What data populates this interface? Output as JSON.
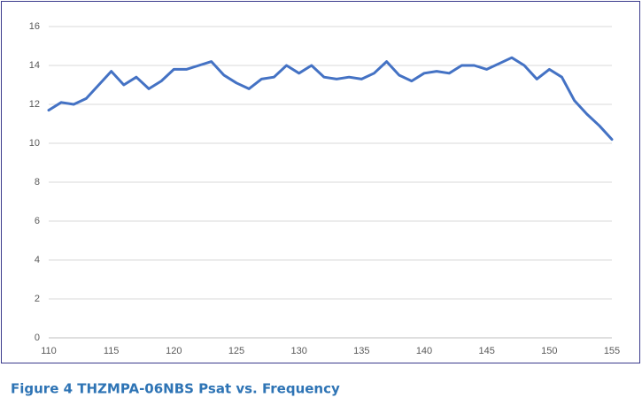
{
  "chart_data": {
    "type": "line",
    "caption": "Figure 4 THZMPA-06NBS Psat vs. Frequency",
    "x": [
      110,
      111,
      112,
      113,
      114,
      115,
      116,
      117,
      118,
      119,
      120,
      121,
      122,
      123,
      124,
      125,
      126,
      127,
      128,
      129,
      130,
      131,
      132,
      133,
      134,
      135,
      136,
      137,
      138,
      139,
      140,
      141,
      142,
      143,
      144,
      145,
      146,
      147,
      148,
      149,
      150,
      151,
      152,
      153,
      154,
      155
    ],
    "series": [
      {
        "name": "Psat",
        "color": "#4472c4",
        "values": [
          11.7,
          12.1,
          12.0,
          12.3,
          13.0,
          13.7,
          13.0,
          13.4,
          12.8,
          13.2,
          13.8,
          13.8,
          14.0,
          14.2,
          13.5,
          13.1,
          12.8,
          13.3,
          13.4,
          14.0,
          13.6,
          14.0,
          13.4,
          13.3,
          13.4,
          13.3,
          13.6,
          14.2,
          13.5,
          13.2,
          13.6,
          13.7,
          13.6,
          14.0,
          14.0,
          13.8,
          14.1,
          14.4,
          14.0,
          13.3,
          13.8,
          13.4,
          12.2,
          11.5,
          10.9,
          10.2
        ]
      }
    ],
    "xlim": [
      110,
      155
    ],
    "xticks": [
      110,
      115,
      120,
      125,
      130,
      135,
      140,
      145,
      150,
      155
    ],
    "ylim": [
      0,
      16
    ],
    "yticks": [
      0,
      2,
      4,
      6,
      8,
      10,
      12,
      14,
      16
    ],
    "grid": true
  }
}
